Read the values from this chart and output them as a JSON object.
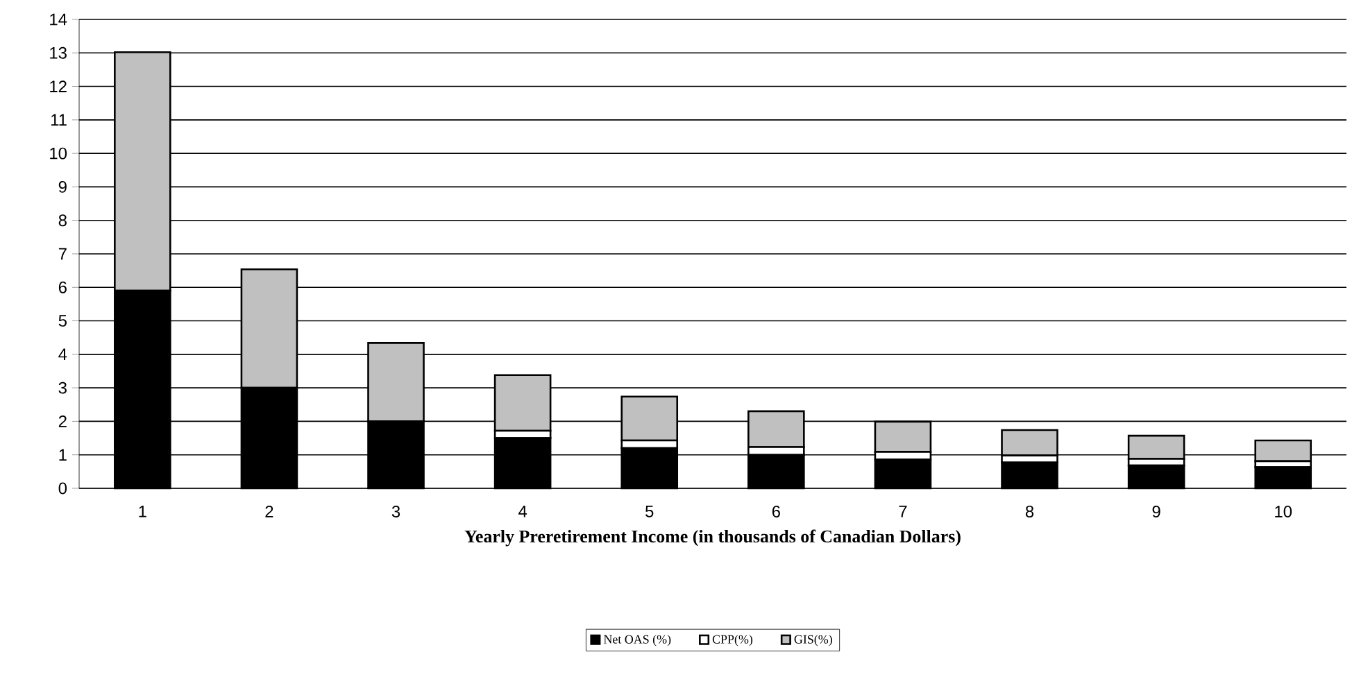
{
  "chart_data": {
    "type": "bar",
    "stacked": true,
    "xlabel": "Yearly Preretirement Income (in thousands of Canadian Dollars)",
    "categories": [
      "1",
      "2",
      "3",
      "4",
      "5",
      "6",
      "7",
      "8",
      "9",
      "10"
    ],
    "series": [
      {
        "name": "Net OAS (%)",
        "color": "#000000",
        "values": [
          5.9,
          3.0,
          2.0,
          1.5,
          1.2,
          1.0,
          0.86,
          0.77,
          0.68,
          0.63
        ]
      },
      {
        "name": "CPP(%)",
        "color": "#ffffff",
        "values": [
          0,
          0,
          0,
          0.22,
          0.23,
          0.23,
          0.23,
          0.21,
          0.2,
          0.18
        ]
      },
      {
        "name": "GIS(%)",
        "color": "#c0c0c0",
        "values": [
          7.12,
          3.54,
          2.34,
          1.66,
          1.31,
          1.07,
          0.9,
          0.76,
          0.69,
          0.62
        ]
      }
    ],
    "ylim": [
      0,
      14
    ],
    "yticks": [
      0,
      1,
      2,
      3,
      4,
      5,
      6,
      7,
      8,
      9,
      10,
      11,
      12,
      13,
      14
    ],
    "grid": "y",
    "legend": "bottom"
  }
}
